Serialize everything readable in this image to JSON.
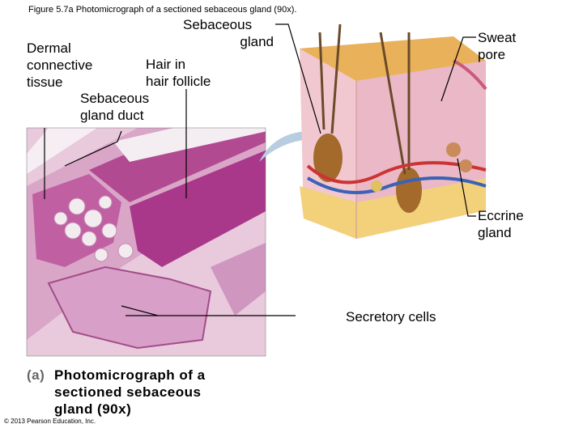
{
  "figure_title": "Figure 5.7a  Photomicrograph of a sectioned sebaceous gland (90x).",
  "labels": {
    "sebaceous_gland": [
      "Sebaceous",
      "gland"
    ],
    "dermal_connective_tissue": [
      "Dermal",
      "connective",
      "tissue"
    ],
    "hair_in_hair_follicle": [
      "Hair in",
      "hair follicle"
    ],
    "sebaceous_gland_duct": [
      "Sebaceous",
      "gland duct"
    ],
    "sweat_pore": [
      "Sweat",
      "pore"
    ],
    "eccrine_gland": [
      "Eccrine",
      "gland"
    ],
    "secretory_cells": [
      "Secretory cells"
    ]
  },
  "caption": {
    "letter": "(a)",
    "lines": [
      "Photomicrograph of a",
      "sectioned sebaceous",
      "gland (90x)"
    ]
  },
  "copyright": "© 2013 Pearson Education, Inc."
}
